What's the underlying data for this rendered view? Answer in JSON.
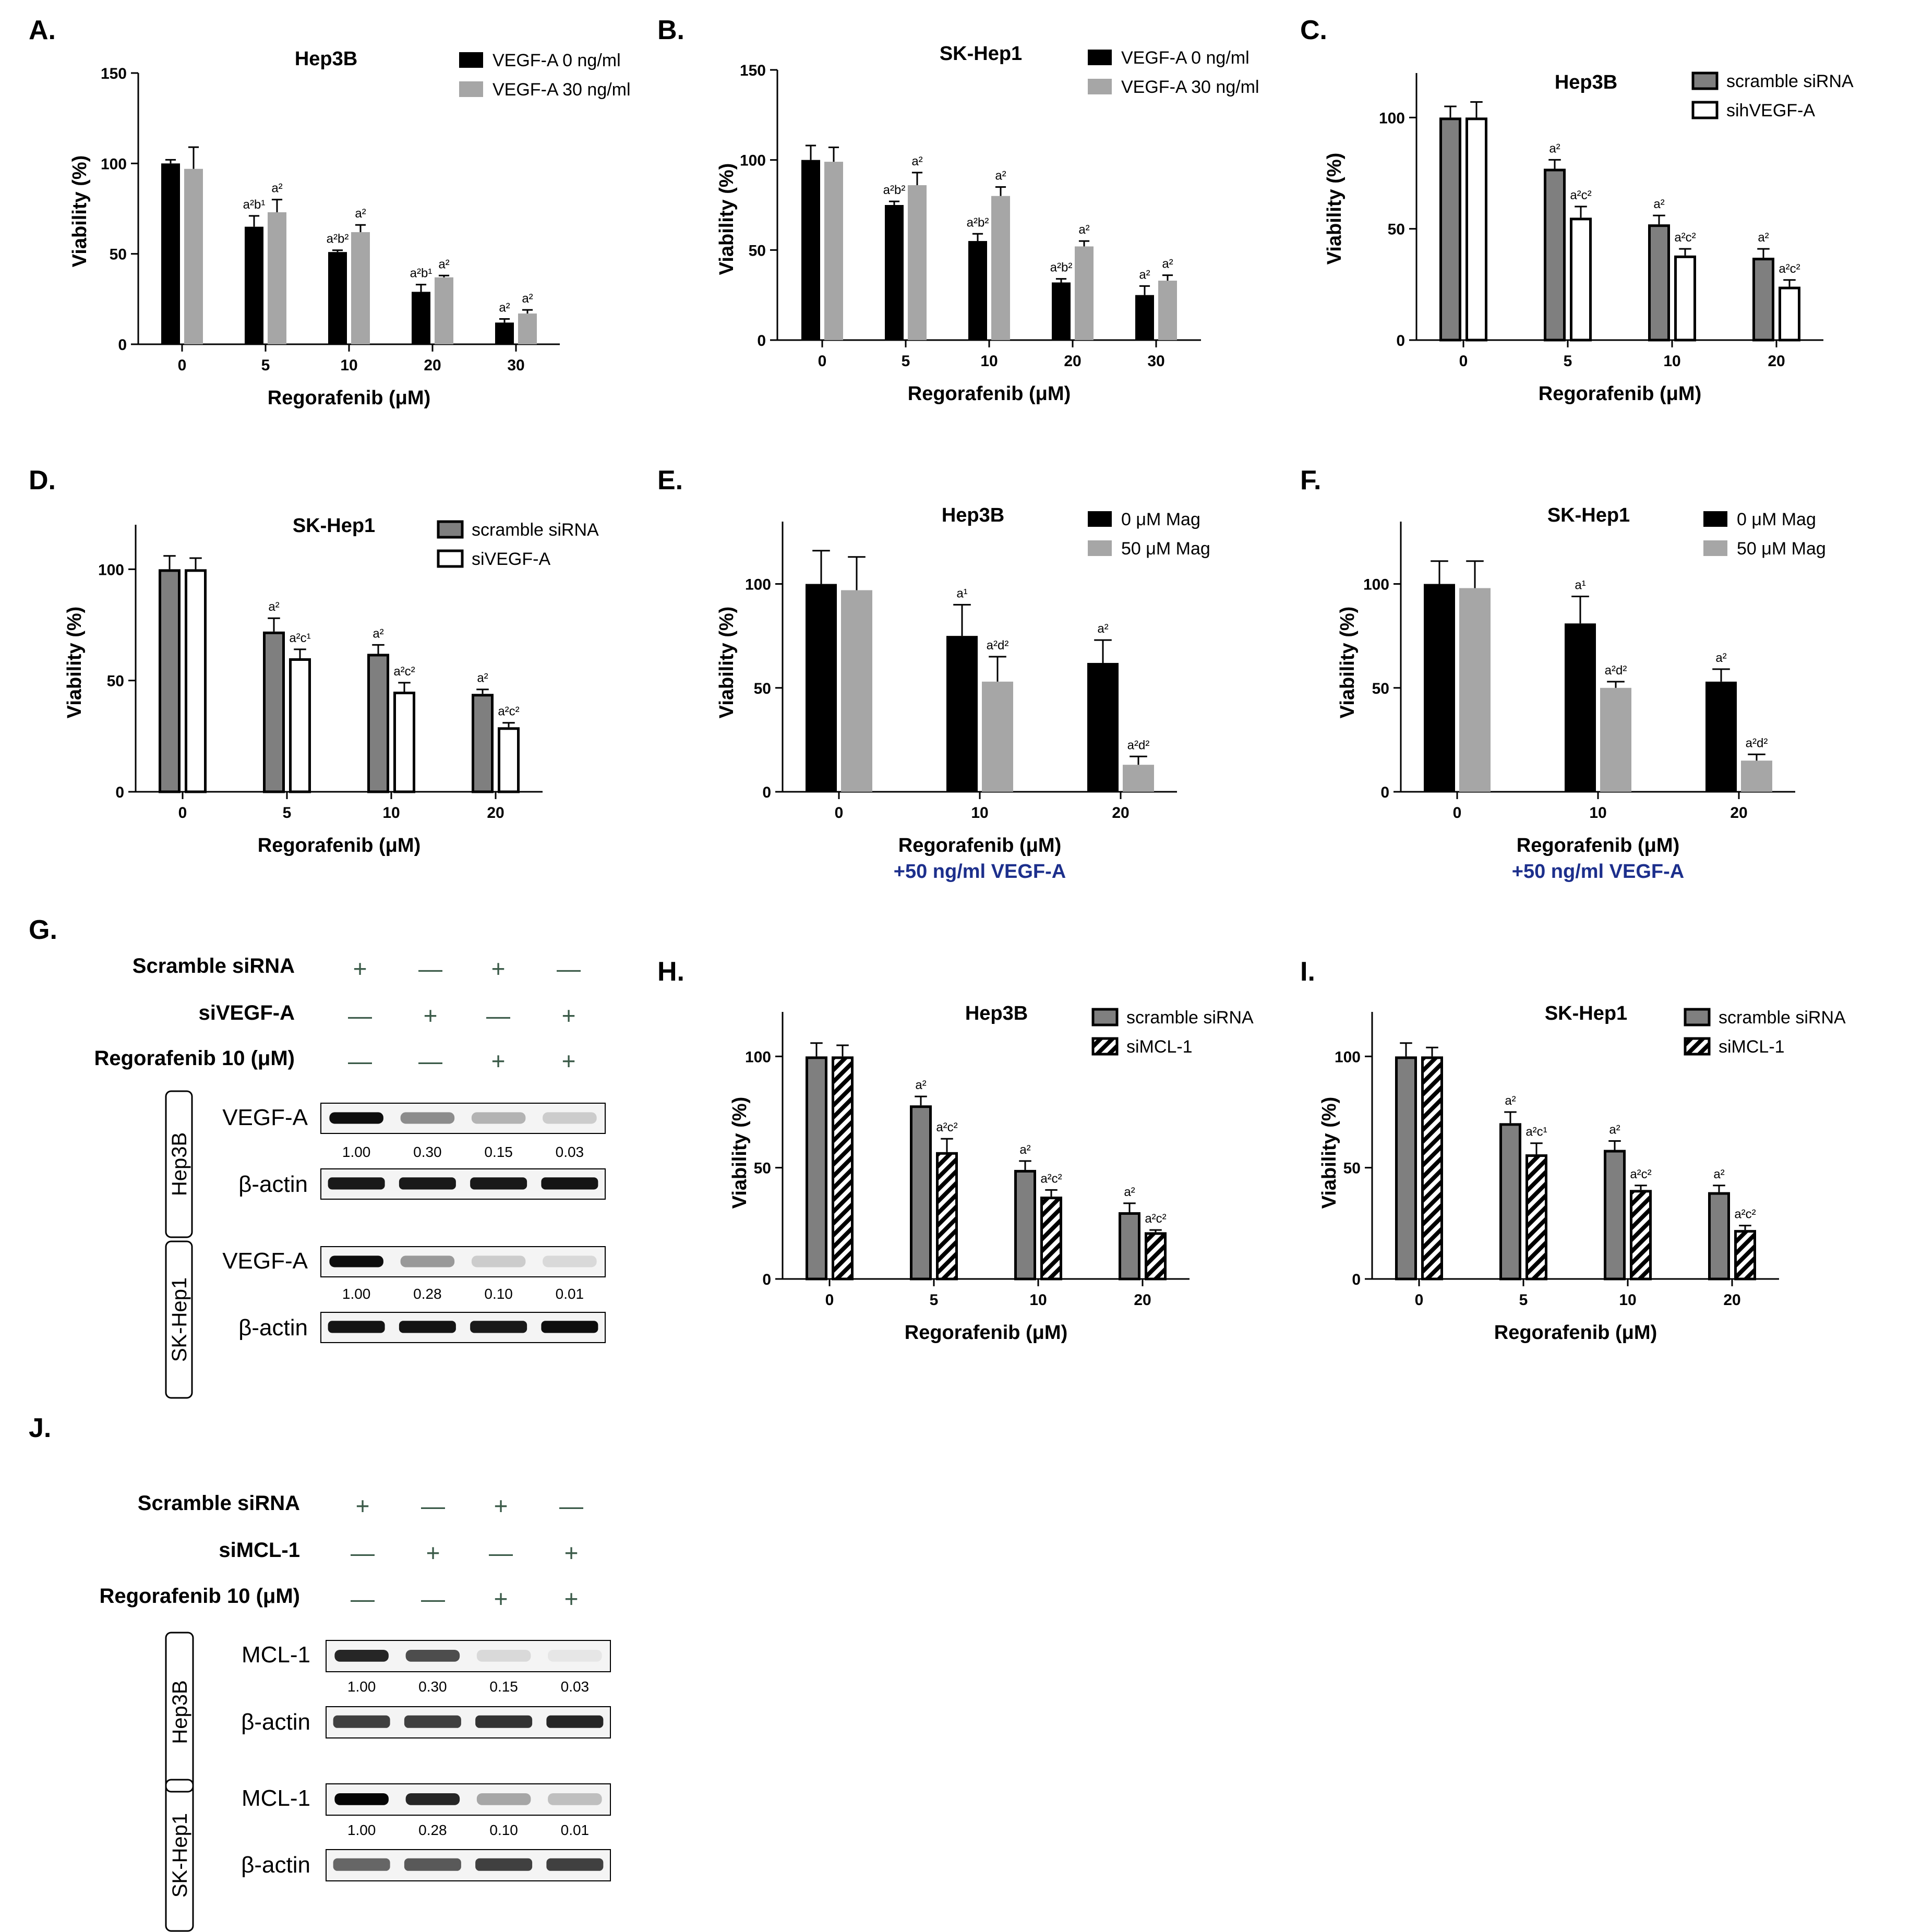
{
  "colors": {
    "black": "#000000",
    "gray": "#a6a6a6",
    "darkgray": "#7f7f7f",
    "white": "#ffffff",
    "sub_label": "#1c2f8c"
  },
  "chart_data": [
    {
      "panel": "A.",
      "type": "bar",
      "title": "Hep3B",
      "xlabel": "Regorafenib (μM)",
      "ylabel": "Viability (%)",
      "ylim": [
        0,
        150
      ],
      "yticks": [
        0,
        50,
        100,
        150
      ],
      "categories": [
        "0",
        "5",
        "10",
        "20",
        "30"
      ],
      "legend_position": "top-right",
      "series": [
        {
          "name": "VEGF-A 0 ng/ml",
          "style": "black",
          "values": [
            100,
            65,
            51,
            29,
            12
          ],
          "errors": [
            2,
            6,
            1,
            4,
            2
          ],
          "labels": [
            "",
            "a²b¹",
            "a²b²",
            "a²b¹",
            "a²"
          ]
        },
        {
          "name": "VEGF-A 30 ng/ml",
          "style": "gray",
          "values": [
            97,
            73,
            62,
            37,
            17
          ],
          "errors": [
            12,
            7,
            4,
            1,
            2
          ],
          "labels": [
            "",
            "a²",
            "a²",
            "a²",
            "a²"
          ]
        }
      ]
    },
    {
      "panel": "B.",
      "type": "bar",
      "title": "SK-Hep1",
      "xlabel": "Regorafenib (μM)",
      "ylabel": "Viability (%)",
      "ylim": [
        0,
        150
      ],
      "yticks": [
        0,
        50,
        100,
        150
      ],
      "categories": [
        "0",
        "5",
        "10",
        "20",
        "30"
      ],
      "legend_position": "top-right",
      "series": [
        {
          "name": "VEGF-A 0 ng/ml",
          "style": "black",
          "values": [
            100,
            75,
            55,
            32,
            25
          ],
          "errors": [
            8,
            2,
            4,
            2,
            5
          ],
          "labels": [
            "",
            "a²b²",
            "a²b²",
            "a²b²",
            "a²"
          ]
        },
        {
          "name": "VEGF-A 30 ng/ml",
          "style": "gray",
          "values": [
            99,
            86,
            80,
            52,
            33
          ],
          "errors": [
            8,
            7,
            5,
            3,
            3
          ],
          "labels": [
            "",
            "a²",
            "a²",
            "a²",
            "a²"
          ]
        }
      ]
    },
    {
      "panel": "C.",
      "type": "bar",
      "title": "Hep3B",
      "xlabel": "Regorafenib (μM)",
      "ylabel": "Viability (%)",
      "ylim": [
        0,
        120
      ],
      "yticks": [
        0,
        50,
        100
      ],
      "categories": [
        "0",
        "5",
        "10",
        "20"
      ],
      "legend_position": "top-right",
      "series": [
        {
          "name": "scramble siRNA",
          "style": "darkgray",
          "values": [
            100,
            77,
            52,
            37
          ],
          "errors": [
            5,
            4,
            4,
            4
          ],
          "labels": [
            "",
            "a²",
            "a²",
            "a²"
          ]
        },
        {
          "name": "sihVEGF-A",
          "style": "white",
          "values": [
            100,
            55,
            38,
            24
          ],
          "errors": [
            7,
            5,
            3,
            3
          ],
          "labels": [
            "",
            "a²c²",
            "a²c²",
            "a²c²"
          ]
        }
      ]
    },
    {
      "panel": "D.",
      "type": "bar",
      "title": "SK-Hep1",
      "xlabel": "Regorafenib (μM)",
      "ylabel": "Viability (%)",
      "ylim": [
        0,
        120
      ],
      "yticks": [
        0,
        50,
        100
      ],
      "categories": [
        "0",
        "5",
        "10",
        "20"
      ],
      "legend_position": "top-right",
      "series": [
        {
          "name": "scramble siRNA",
          "style": "darkgray",
          "values": [
            100,
            72,
            62,
            44
          ],
          "errors": [
            6,
            6,
            4,
            2
          ],
          "labels": [
            "",
            "a²",
            "a²",
            "a²"
          ]
        },
        {
          "name": "siVEGF-A",
          "style": "white",
          "values": [
            100,
            60,
            45,
            29
          ],
          "errors": [
            5,
            4,
            4,
            2
          ],
          "labels": [
            "",
            "a²c¹",
            "a²c²",
            "a²c²"
          ]
        }
      ]
    },
    {
      "panel": "E.",
      "type": "bar",
      "title": "Hep3B",
      "xlabel": "Regorafenib (μM)",
      "xlabel2": "+50 ng/ml VEGF-A",
      "ylabel": "Viability (%)",
      "ylim": [
        0,
        130
      ],
      "yticks": [
        0,
        50,
        100
      ],
      "categories": [
        "0",
        "10",
        "20"
      ],
      "legend_position": "top-right",
      "series": [
        {
          "name": "0 μM Mag",
          "style": "black",
          "values": [
            100,
            75,
            62
          ],
          "errors": [
            16,
            15,
            11
          ],
          "labels": [
            "",
            "a¹",
            "a²"
          ]
        },
        {
          "name": "50 μM Mag",
          "style": "gray",
          "values": [
            97,
            53,
            13
          ],
          "errors": [
            16,
            12,
            4
          ],
          "labels": [
            "",
            "a²d²",
            "a²d²"
          ]
        }
      ]
    },
    {
      "panel": "F.",
      "type": "bar",
      "title": "SK-Hep1",
      "xlabel": "Regorafenib (μM)",
      "xlabel2": "+50 ng/ml VEGF-A",
      "ylabel": "Viability (%)",
      "ylim": [
        0,
        130
      ],
      "yticks": [
        0,
        50,
        100
      ],
      "categories": [
        "0",
        "10",
        "20"
      ],
      "legend_position": "top-right",
      "series": [
        {
          "name": "0 μM Mag",
          "style": "black",
          "values": [
            100,
            81,
            53
          ],
          "errors": [
            11,
            13,
            6
          ],
          "labels": [
            "",
            "a¹",
            "a²"
          ]
        },
        {
          "name": "50 μM Mag",
          "style": "gray",
          "values": [
            98,
            50,
            15
          ],
          "errors": [
            13,
            3,
            3
          ],
          "labels": [
            "",
            "a²d²",
            "a²d²"
          ]
        }
      ]
    },
    {
      "panel": "H.",
      "type": "bar",
      "title": "Hep3B",
      "xlabel": "Regorafenib (μM)",
      "ylabel": "Viability (%)",
      "ylim": [
        0,
        120
      ],
      "yticks": [
        0,
        50,
        100
      ],
      "categories": [
        "0",
        "5",
        "10",
        "20"
      ],
      "legend_position": "top-right",
      "series": [
        {
          "name": "scramble siRNA",
          "style": "darkgray",
          "values": [
            100,
            78,
            49,
            30
          ],
          "errors": [
            6,
            4,
            4,
            4
          ],
          "labels": [
            "",
            "a²",
            "a²",
            "a²"
          ]
        },
        {
          "name": "siMCL-1",
          "style": "hatch",
          "values": [
            100,
            57,
            37,
            21
          ],
          "errors": [
            5,
            6,
            3,
            1
          ],
          "labels": [
            "",
            "a²c²",
            "a²c²",
            "a²c²"
          ]
        }
      ]
    },
    {
      "panel": "I.",
      "type": "bar",
      "title": "SK-Hep1",
      "xlabel": "Regorafenib (μM)",
      "ylabel": "Viability (%)",
      "ylim": [
        0,
        120
      ],
      "yticks": [
        0,
        50,
        100
      ],
      "categories": [
        "0",
        "5",
        "10",
        "20"
      ],
      "legend_position": "top-right",
      "series": [
        {
          "name": "scramble siRNA",
          "style": "darkgray",
          "values": [
            100,
            70,
            58,
            39
          ],
          "errors": [
            6,
            5,
            4,
            3
          ],
          "labels": [
            "",
            "a²",
            "a²",
            "a²"
          ]
        },
        {
          "name": "siMCL-1",
          "style": "hatch",
          "values": [
            100,
            56,
            40,
            22
          ],
          "errors": [
            4,
            5,
            2,
            2
          ],
          "labels": [
            "",
            "a²c¹",
            "a²c²",
            "a²c²"
          ]
        }
      ]
    }
  ],
  "blots": [
    {
      "panel": "G.",
      "rows": [
        {
          "label": "Scramble siRNA",
          "signs": [
            "+",
            "—",
            "+",
            "—"
          ]
        },
        {
          "label": "siVEGF-A",
          "signs": [
            "—",
            "+",
            "—",
            "+"
          ]
        },
        {
          "label": "Regorafenib 10 (μM)",
          "signs": [
            "—",
            "—",
            "+",
            "+"
          ]
        }
      ],
      "groups": [
        {
          "cell": "Hep3B",
          "target": "VEGF-A",
          "quant": [
            "1.00",
            "0.30",
            "0.15",
            "0.03"
          ],
          "target_intensity": [
            0.95,
            0.45,
            0.3,
            0.2
          ],
          "control": "β-actin",
          "control_intensity": [
            0.9,
            0.9,
            0.9,
            0.92
          ]
        },
        {
          "cell": "SK-Hep1",
          "target": "VEGF-A",
          "quant": [
            "1.00",
            "0.28",
            "0.10",
            "0.01"
          ],
          "target_intensity": [
            0.95,
            0.4,
            0.2,
            0.15
          ],
          "control": "β-actin",
          "control_intensity": [
            0.92,
            0.92,
            0.9,
            0.95
          ]
        }
      ]
    },
    {
      "panel": "J.",
      "rows": [
        {
          "label": "Scramble siRNA",
          "signs": [
            "+",
            "—",
            "+",
            "—"
          ]
        },
        {
          "label": "siMCL-1",
          "signs": [
            "—",
            "+",
            "—",
            "+"
          ]
        },
        {
          "label": "Regorafenib 10 (μM)",
          "signs": [
            "—",
            "—",
            "+",
            "+"
          ]
        }
      ],
      "groups": [
        {
          "cell": "Hep3B",
          "target": "MCL-1",
          "quant": [
            "1.00",
            "0.30",
            "0.15",
            "0.03"
          ],
          "target_intensity": [
            0.85,
            0.7,
            0.15,
            0.1
          ],
          "control": "β-actin",
          "control_intensity": [
            0.75,
            0.75,
            0.8,
            0.85
          ]
        },
        {
          "cell": "SK-Hep1",
          "target": "MCL-1",
          "quant": [
            "1.00",
            "0.28",
            "0.10",
            "0.01"
          ],
          "target_intensity": [
            0.98,
            0.85,
            0.35,
            0.25
          ],
          "control": "β-actin",
          "control_intensity": [
            0.6,
            0.65,
            0.75,
            0.75
          ]
        }
      ]
    }
  ]
}
